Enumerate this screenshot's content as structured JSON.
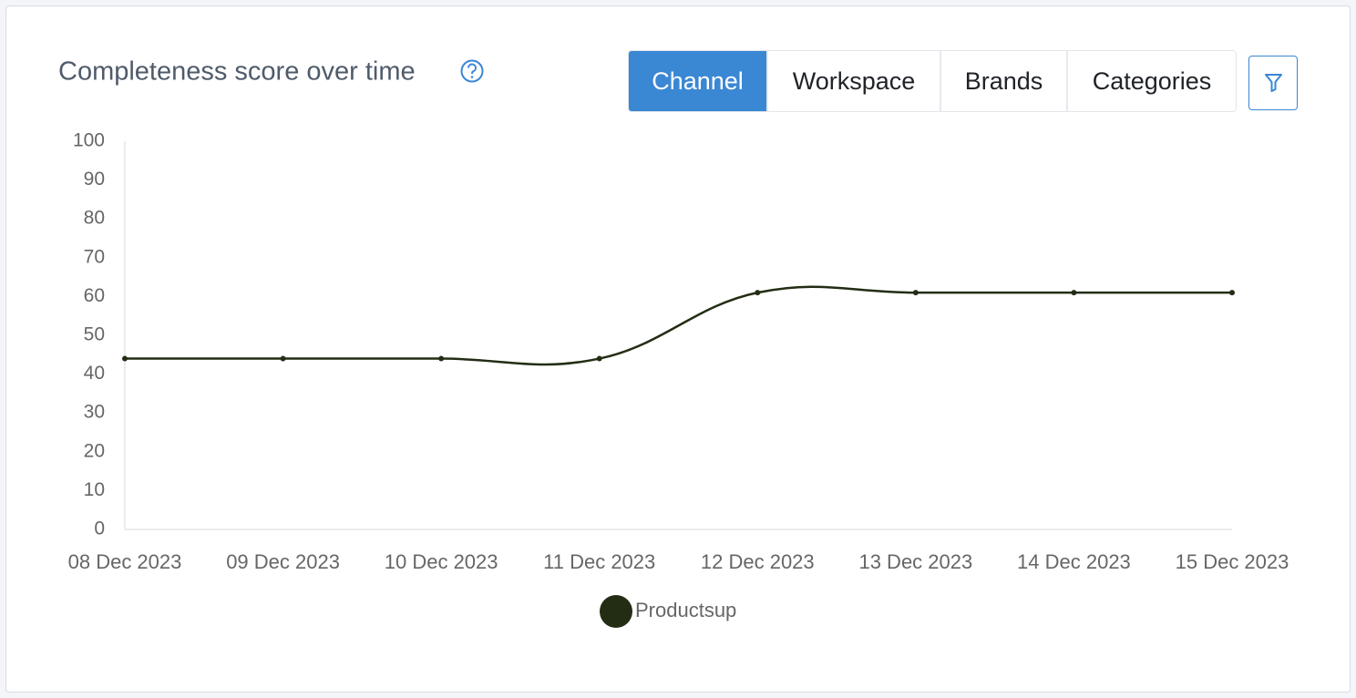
{
  "chart_data": {
    "type": "line",
    "title": "Completeness score over time",
    "x": [
      "08 Dec 2023",
      "09 Dec 2023",
      "10 Dec 2023",
      "11 Dec 2023",
      "12 Dec 2023",
      "13 Dec 2023",
      "14 Dec 2023",
      "15 Dec 2023"
    ],
    "series": [
      {
        "name": "Productsup",
        "color": "#232d14",
        "values": [
          44,
          44,
          44,
          44,
          61,
          61,
          61,
          61
        ]
      }
    ],
    "ylim": [
      0,
      100
    ],
    "yticks": [
      0,
      10,
      20,
      30,
      40,
      50,
      60,
      70,
      80,
      90,
      100
    ],
    "grid": false,
    "legend": "bottom"
  },
  "tabs": [
    "Channel",
    "Workspace",
    "Brands",
    "Categories"
  ],
  "active_tab": 0
}
